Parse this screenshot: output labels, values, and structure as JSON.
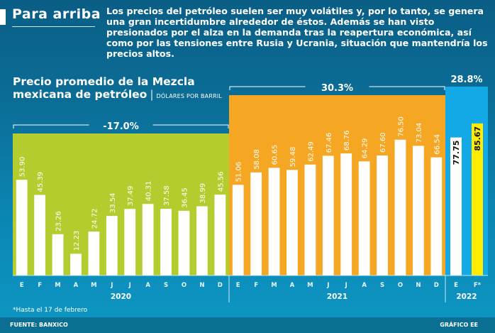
{
  "header": {
    "title": "Para arriba",
    "intro": "Los precios del petróleo suelen ser muy volátiles y, por lo tanto, se genera una gran incertidumbre alrededor de éstos. Además se han visto presionados por el alza en la demanda tras la reapertura económica, así como por las tensiones entre Rusia y Ucrania, situación que mantendría los precios altos."
  },
  "chart_title": {
    "line1": "Precio promedio de la Mezcla",
    "line2": "mexicana de petróleo",
    "separator": "|",
    "unit": "DÓLARES POR BARRIL"
  },
  "chart_data": {
    "type": "bar",
    "title": "Precio promedio de la Mezcla mexicana de petróleo",
    "ylabel": "Dólares por barril",
    "ylim": [
      0,
      100
    ],
    "grid": false,
    "groups": [
      {
        "year": "2020",
        "change": "-17.0%",
        "panel_color": "#b5cc2e",
        "bar_color": "#ffffff",
        "categories": [
          "E",
          "F",
          "M",
          "A",
          "M",
          "J",
          "J",
          "A",
          "S",
          "O",
          "N",
          "D"
        ],
        "values": [
          53.9,
          45.39,
          23.26,
          12.23,
          24.72,
          33.54,
          37.49,
          40.31,
          37.58,
          36.45,
          38.99,
          45.56
        ],
        "labels": [
          "53.90",
          "45.39",
          "23.26",
          "12.23",
          "24.72",
          "33.54",
          "37.49",
          "40.31",
          "37.58",
          "36.45",
          "38.99",
          "45.56"
        ]
      },
      {
        "year": "2021",
        "change": "30.3%",
        "panel_color": "#f5a623",
        "bar_color": "#ffffff",
        "categories": [
          "E",
          "F",
          "M",
          "A",
          "M",
          "J",
          "J",
          "A",
          "S",
          "O",
          "N",
          "D"
        ],
        "values": [
          51.06,
          58.08,
          60.65,
          59.48,
          62.49,
          67.46,
          68.76,
          64.29,
          67.6,
          76.5,
          73.04,
          66.54
        ],
        "labels": [
          "51.06",
          "58.08",
          "60.65",
          "59.48",
          "62.49",
          "67.46",
          "68.76",
          "64.29",
          "67.60",
          "76.50",
          "73.04",
          "66.54"
        ]
      },
      {
        "year": "2022",
        "change": "28.8%",
        "panel_color": "#12a9e6",
        "categories": [
          "E",
          "F*"
        ],
        "values": [
          77.75,
          85.67
        ],
        "labels": [
          "77.75",
          "85.67"
        ],
        "bar_colors": [
          "#ffffff",
          "#ffec00"
        ]
      }
    ]
  },
  "footnote": "*Hasta el 17 de febrero",
  "source": "FUENTE: BANXICO",
  "credit": "GRÁFICO EE"
}
